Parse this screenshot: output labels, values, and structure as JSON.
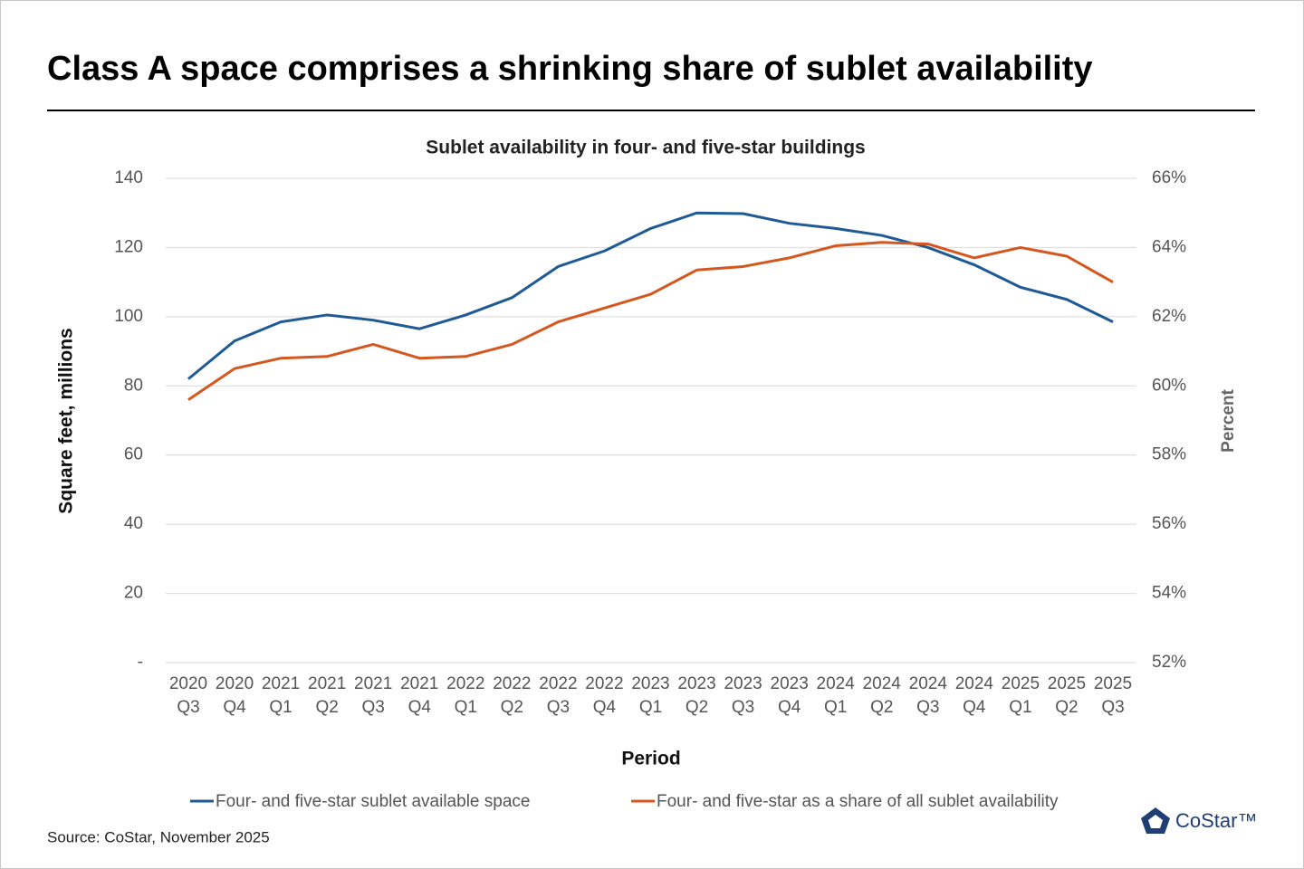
{
  "chart_data": {
    "type": "line",
    "title": "Class A space comprises a shrinking share of sublet availability",
    "subtitle": "Sublet availability in four- and five-star buildings",
    "ylabel": "Square feet, millions",
    "y2label": "Percent",
    "xlabel": "Period",
    "source": "Source: CoStar, November 2025",
    "logo": "CoStar™",
    "categories": [
      "2020 Q3",
      "2020 Q4",
      "2021 Q1",
      "2021 Q2",
      "2021 Q3",
      "2021 Q4",
      "2022 Q1",
      "2022 Q2",
      "2022 Q3",
      "2022 Q4",
      "2023 Q1",
      "2023 Q2",
      "2023 Q3",
      "2023 Q4",
      "2024 Q1",
      "2024 Q2",
      "2024 Q3",
      "2024 Q4",
      "2025 Q1",
      "2025 Q2",
      "2025 Q3"
    ],
    "series": [
      {
        "name": "Four- and five-star sublet available space",
        "color": "#1f5a96",
        "values": [
          82,
          93,
          98.5,
          100.5,
          99,
          96.5,
          100.5,
          105.5,
          114.5,
          119,
          125.5,
          130,
          129.8,
          127,
          125.5,
          123.5,
          120,
          115,
          108.5,
          105,
          98.5
        ]
      },
      {
        "name": "Four- and five-star as a share of all sublet availability",
        "color": "#d4571f",
        "axis": "y2",
        "values": [
          59.6,
          60.5,
          60.8,
          60.85,
          61.2,
          60.8,
          60.85,
          61.2,
          61.85,
          62.25,
          62.65,
          63.35,
          63.45,
          63.7,
          64.05,
          64.15,
          64.1,
          63.7,
          64.0,
          63.75,
          63.0
        ]
      }
    ],
    "ylim": [
      0,
      140
    ],
    "yticks": [
      {
        "value": 0,
        "label": "-"
      },
      20,
      40,
      60,
      80,
      100,
      120,
      140
    ],
    "y2lim": [
      52,
      66
    ],
    "y2ticks": [
      {
        "value": 52,
        "label": "52%"
      },
      {
        "value": 54,
        "label": "54%"
      },
      {
        "value": 56,
        "label": "56%"
      },
      {
        "value": 58,
        "label": "58%"
      },
      {
        "value": 60,
        "label": "60%"
      },
      {
        "value": 62,
        "label": "62%"
      },
      {
        "value": 64,
        "label": "64%"
      },
      {
        "value": 66,
        "label": "66%"
      }
    ],
    "grid": true,
    "legend": "bottom"
  }
}
